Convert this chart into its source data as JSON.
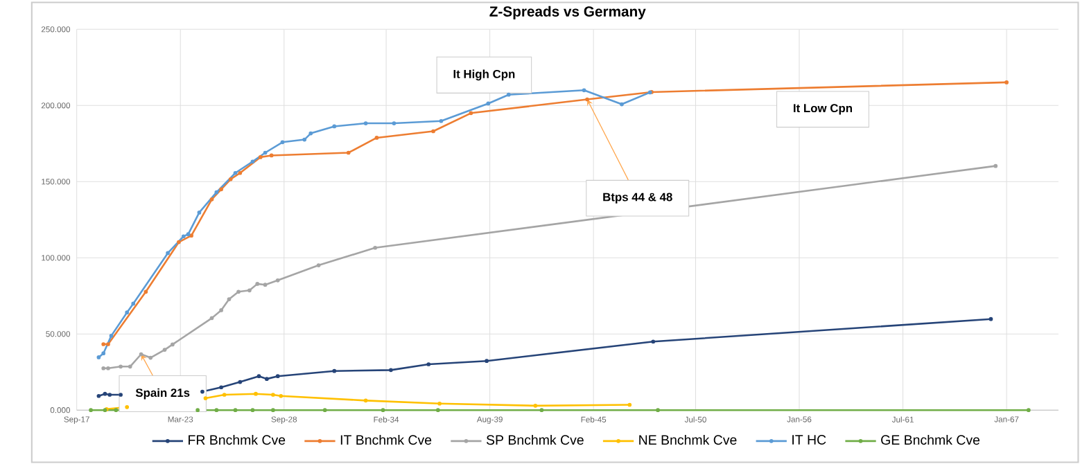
{
  "chart_data": {
    "type": "line",
    "title": "Z-Spreads vs Germany",
    "xlim": [
      "2017-09",
      "2069-10"
    ],
    "xticks": [
      {
        "value": "2017-09",
        "label": "Sep-17"
      },
      {
        "value": "2023-03",
        "label": "Mar-23"
      },
      {
        "value": "2028-09",
        "label": "Sep-28"
      },
      {
        "value": "2034-02",
        "label": "Feb-34"
      },
      {
        "value": "2039-08",
        "label": "Aug-39"
      },
      {
        "value": "2045-02",
        "label": "Feb-45"
      },
      {
        "value": "2050-07",
        "label": "Jul-50"
      },
      {
        "value": "2056-01",
        "label": "Jan-56"
      },
      {
        "value": "2061-07",
        "label": "Jul-61"
      },
      {
        "value": "2067-01",
        "label": "Jan-67"
      }
    ],
    "ylim": [
      0,
      250
    ],
    "yticks": [
      {
        "value": 0,
        "label": "0.000"
      },
      {
        "value": 50,
        "label": "50.000"
      },
      {
        "value": 100,
        "label": "100.000"
      },
      {
        "value": 150,
        "label": "150.000"
      },
      {
        "value": 200,
        "label": "200.000"
      },
      {
        "value": 250,
        "label": "250.000"
      }
    ],
    "grid": true,
    "legend": "bottom",
    "marker": "circle",
    "line_style": "solid",
    "series": [
      {
        "name": "FR Bnchmk Cve",
        "color": "#264478",
        "x": [
          "2018-11",
          "2019-03",
          "2019-06",
          "2020-01",
          "2024-05",
          "2025-05",
          "2026-05",
          "2027-05",
          "2027-10",
          "2028-05",
          "2031-05",
          "2034-05",
          "2036-05",
          "2039-06",
          "2048-04",
          "2066-03"
        ],
        "values": [
          9.3,
          10.7,
          10.1,
          10.1,
          12.1,
          15,
          18.5,
          22.3,
          20.5,
          22.3,
          25.7,
          26.3,
          30.1,
          32.3,
          45,
          59.8
        ]
      },
      {
        "name": "IT Bnchmk Cve",
        "color": "#ed7d31",
        "x": [
          "2019-02",
          "2019-05",
          "2021-05",
          "2023-02",
          "2023-10",
          "2024-11",
          "2025-05",
          "2025-11",
          "2026-05",
          "2027-06",
          "2028-01",
          "2032-02",
          "2033-08",
          "2036-08",
          "2038-08",
          "2044-10",
          "2048-03",
          "2067-01"
        ],
        "values": [
          43.3,
          43.3,
          77.7,
          110.3,
          114.6,
          138.4,
          145,
          151.6,
          155.7,
          166.1,
          167.2,
          169,
          178.8,
          183.1,
          195,
          204,
          208.8,
          215.2
        ]
      },
      {
        "name": "SP Bnchmk Cve",
        "color": "#a5a5a5",
        "x": [
          "2019-02",
          "2019-05",
          "2020-01",
          "2020-07",
          "2021-02",
          "2021-08",
          "2022-05",
          "2022-10",
          "2024-11",
          "2025-05",
          "2025-10",
          "2026-04",
          "2026-11",
          "2027-04",
          "2027-09",
          "2028-05",
          "2030-07",
          "2033-07",
          "2066-06"
        ],
        "values": [
          27.5,
          27.5,
          28.6,
          28.6,
          36.7,
          34.4,
          39.6,
          43.1,
          60.4,
          65.6,
          72.8,
          77.7,
          78.6,
          82.9,
          82.3,
          85.2,
          95.1,
          106.6,
          160.3
        ]
      },
      {
        "name": "NE Bnchmk Cve",
        "color": "#ffc000",
        "x": [
          "2019-04",
          "2020-05",
          "2024-07",
          "2025-07",
          "2027-03",
          "2028-02",
          "2028-07",
          "2033-01",
          "2036-12",
          "2042-01",
          "2047-01"
        ],
        "values": [
          0.6,
          2,
          7.8,
          10.1,
          10.7,
          10.1,
          9.3,
          6.3,
          4.3,
          2.9,
          3.5
        ]
      },
      {
        "name": "IT HC",
        "color": "#5b9bd5",
        "x": [
          "2018-11",
          "2019-02",
          "2019-07",
          "2020-05",
          "2020-09",
          "2022-07",
          "2023-05",
          "2023-08",
          "2024-03",
          "2025-02",
          "2026-02",
          "2027-01",
          "2027-09",
          "2028-08",
          "2029-10",
          "2030-02",
          "2031-05",
          "2033-01",
          "2034-07",
          "2037-01",
          "2039-07",
          "2040-08",
          "2044-08",
          "2046-08",
          "2048-02"
        ],
        "values": [
          34.7,
          37.3,
          48.8,
          64.1,
          69.9,
          103.1,
          114.1,
          115.5,
          129.7,
          143,
          155.7,
          163.2,
          169,
          175.9,
          177.6,
          181.7,
          186.3,
          188.3,
          188.3,
          189.8,
          201.3,
          207.1,
          210,
          200.8,
          208.6
        ]
      },
      {
        "name": "GE Bnchmk Cve",
        "color": "#70ad47",
        "x": [
          "2018-06",
          "2019-03",
          "2019-10",
          "2024-02",
          "2025-02",
          "2026-02",
          "2027-01",
          "2028-02",
          "2030-11",
          "2033-12",
          "2036-11",
          "2042-05",
          "2048-07",
          "2068-03"
        ],
        "values": [
          0,
          0,
          0,
          0,
          0,
          0,
          0,
          0,
          0,
          0,
          0,
          0,
          0,
          0
        ]
      }
    ],
    "annotations": [
      "It High Cpn",
      "It Low Cpn",
      {
        "text": "Btps 44 & 48",
        "x": "2044-10",
        "y": 204
      },
      {
        "text": "Spain 21s",
        "x": "2021-02",
        "y": 36.7
      }
    ]
  }
}
